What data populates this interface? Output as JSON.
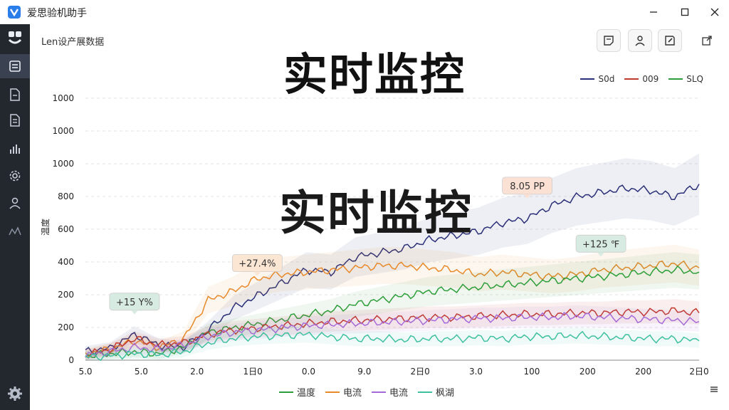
{
  "window": {
    "title": "爱思验机助手",
    "controls": [
      "minimize",
      "maximize",
      "close"
    ]
  },
  "sidebar": {
    "items": [
      {
        "icon": "app-icon",
        "active": false
      },
      {
        "icon": "dashboard-icon",
        "active": true
      },
      {
        "icon": "file-icon",
        "active": false
      },
      {
        "icon": "document-icon",
        "active": false
      },
      {
        "icon": "bar-chart-icon",
        "active": false
      },
      {
        "icon": "gear-icon",
        "active": false
      },
      {
        "icon": "user-icon",
        "active": false
      },
      {
        "icon": "signal-icon",
        "active": false
      }
    ],
    "bottom_icon": "settings-icon"
  },
  "header": {
    "label": "Len设产展数据",
    "toolbar": [
      "note-icon",
      "user-icon",
      "edit-icon",
      "export-icon"
    ]
  },
  "overlay_titles": [
    "实时监控",
    "实时监控"
  ],
  "chart_data": {
    "type": "line",
    "title": "",
    "ylabel": "温度",
    "xlabel": "",
    "y_tick_labels": [
      "0",
      "200",
      "200",
      "400",
      "600",
      "800",
      "1000",
      "1000",
      "1000"
    ],
    "x_tick_labels": [
      "5.0",
      "5.0",
      "2.0",
      "1日0",
      "0.0",
      "9.0",
      "2日0",
      "3.0",
      "100",
      "200",
      "200",
      "2日0"
    ],
    "ylim": [
      0,
      1000
    ],
    "grid": true,
    "legend_top": [
      {
        "name": "S0d",
        "color": "#2a2f78"
      },
      {
        "name": "009",
        "color": "#c0392b"
      },
      {
        "name": "SLQ",
        "color": "#2e9e3a"
      }
    ],
    "legend_bottom": [
      {
        "name": "温度",
        "color": "#2e9e3a"
      },
      {
        "name": "电流",
        "color": "#e8892a"
      },
      {
        "name": "电流",
        "color": "#a66ad6"
      },
      {
        "name": "枫湖",
        "color": "#3fc0a0"
      }
    ],
    "series": [
      {
        "color": "#2a2f78",
        "values": [
          40,
          55,
          120,
          70,
          60,
          140,
          240,
          300,
          360,
          420,
          410,
          480,
          500,
          520,
          560,
          580,
          600,
          640,
          660,
          720,
          760,
          780,
          800,
          790,
          760,
          820
        ]
      },
      {
        "color": "#e8892a",
        "values": [
          30,
          50,
          90,
          60,
          100,
          280,
          320,
          380,
          400,
          410,
          420,
          430,
          440,
          440,
          430,
          420,
          400,
          410,
          400,
          390,
          400,
          420,
          430,
          440,
          450,
          430
        ]
      },
      {
        "color": "#2e9e3a",
        "values": [
          20,
          30,
          40,
          30,
          60,
          130,
          150,
          170,
          190,
          210,
          230,
          260,
          280,
          300,
          320,
          330,
          340,
          350,
          360,
          370,
          380,
          390,
          400,
          410,
          420,
          410
        ]
      },
      {
        "color": "#c0392b",
        "values": [
          25,
          50,
          100,
          70,
          80,
          120,
          140,
          150,
          160,
          170,
          180,
          185,
          190,
          195,
          200,
          200,
          205,
          210,
          215,
          215,
          220,
          220,
          225,
          225,
          230,
          220
        ]
      },
      {
        "color": "#a66ad6",
        "values": [
          20,
          40,
          60,
          50,
          70,
          110,
          130,
          140,
          150,
          160,
          165,
          170,
          175,
          180,
          185,
          190,
          195,
          195,
          200,
          200,
          205,
          200,
          195,
          190,
          185,
          180
        ]
      },
      {
        "color": "#3fc0a0",
        "values": [
          15,
          20,
          30,
          25,
          40,
          80,
          100,
          110,
          115,
          120,
          110,
          100,
          100,
          95,
          100,
          100,
          105,
          100,
          110,
          110,
          115,
          110,
          105,
          100,
          100,
          90
        ]
      }
    ],
    "annotations": [
      {
        "text": "+15 Y%",
        "point_index": 2,
        "series": 0,
        "bg": "#d8ebe3"
      },
      {
        "text": "+27.4%",
        "point_index": 7,
        "series": 0,
        "bg": "#fbe6d4"
      },
      {
        "text": "8.05 PP",
        "point_index": 18,
        "series": 0,
        "bg": "#fbe0d4"
      },
      {
        "text": "+125 ℉",
        "point_index": 21,
        "series": 2,
        "bg": "#d8ebe3"
      }
    ]
  }
}
